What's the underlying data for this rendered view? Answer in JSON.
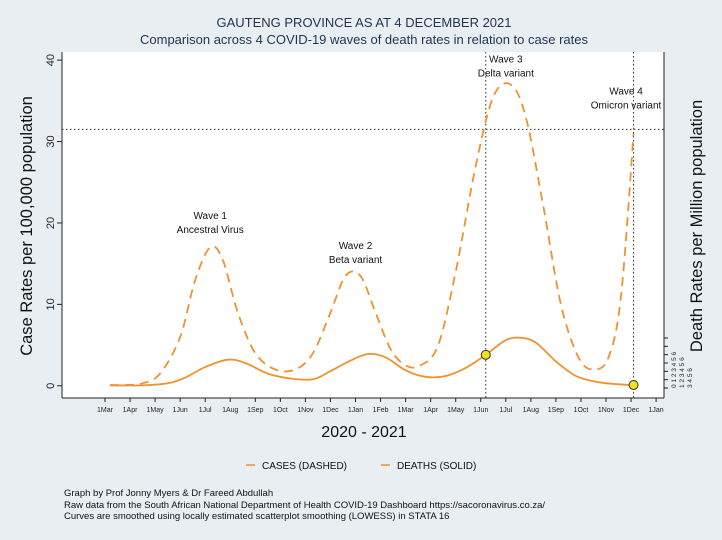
{
  "chart_data": {
    "type": "line",
    "title": "GAUTENG PROVINCE AS AT 4 DECEMBER 2021",
    "subtitle": "Comparison across 4 COVID-19 waves of death rates in relation to case rates",
    "xlabel": "2020 - 2021",
    "ylabel_left": "Case Rates per 100,000 population",
    "ylabel_right": "Death Rates per Million population",
    "x_ticks": [
      "1Mar",
      "1Apr",
      "1May",
      "1Jun",
      "1Jul",
      "1Aug",
      "1Sep",
      "1Oct",
      "1Nov",
      "1Dec",
      "1Jan",
      "1Feb",
      "1Mar",
      "1Apr",
      "1May",
      "1Jun",
      "1Jul",
      "1Aug",
      "1Sep",
      "1Oct",
      "1Nov",
      "1Dec",
      "1Jan"
    ],
    "y_left_ticks": [
      0,
      10,
      20,
      30,
      40
    ],
    "ylim_left": [
      -1.5,
      41
    ],
    "y_right_ticks": [
      0,
      1,
      2,
      3,
      4,
      5,
      6
    ],
    "right_tick_rows": [
      "0 1 2 3 4 5 6",
      "1 2 3 4 5 6",
      "3 4 5 6"
    ],
    "reference_line_y": 31.5,
    "reference_line_x_months": [
      15.2,
      21.1
    ],
    "series": [
      {
        "name": "CASES (DASHED)",
        "style": "dashed",
        "color": "#f0922f",
        "points": [
          [
            0.2,
            0.1
          ],
          [
            0.8,
            0.1
          ],
          [
            1.5,
            0.3
          ],
          [
            2.2,
            1.5
          ],
          [
            3.0,
            6
          ],
          [
            3.6,
            13
          ],
          [
            4.2,
            17
          ],
          [
            4.7,
            15.5
          ],
          [
            5.3,
            9
          ],
          [
            6.0,
            4
          ],
          [
            6.8,
            2
          ],
          [
            7.6,
            2
          ],
          [
            8.3,
            4
          ],
          [
            9.0,
            9
          ],
          [
            9.6,
            13.5
          ],
          [
            10.2,
            13.5
          ],
          [
            10.8,
            9
          ],
          [
            11.4,
            4.5
          ],
          [
            12.0,
            2.5
          ],
          [
            12.6,
            2.5
          ],
          [
            13.3,
            5
          ],
          [
            14.0,
            14
          ],
          [
            14.8,
            27
          ],
          [
            15.5,
            35.5
          ],
          [
            16.2,
            37
          ],
          [
            16.8,
            33
          ],
          [
            17.5,
            22
          ],
          [
            18.2,
            10
          ],
          [
            18.9,
            3.5
          ],
          [
            19.5,
            2
          ],
          [
            20.1,
            3.5
          ],
          [
            20.6,
            11
          ],
          [
            21.1,
            31
          ]
        ]
      },
      {
        "name": "DEATHS (SOLID)",
        "style": "solid",
        "color": "#f0922f",
        "points": [
          [
            0.2,
            0.05
          ],
          [
            1.5,
            0.05
          ],
          [
            2.5,
            0.3
          ],
          [
            3.2,
            1.0
          ],
          [
            4.0,
            2.3
          ],
          [
            4.9,
            3.2
          ],
          [
            5.6,
            2.8
          ],
          [
            6.5,
            1.5
          ],
          [
            7.4,
            0.9
          ],
          [
            8.3,
            0.8
          ],
          [
            9.0,
            1.8
          ],
          [
            9.8,
            3.1
          ],
          [
            10.5,
            3.9
          ],
          [
            11.2,
            3.5
          ],
          [
            12.0,
            1.9
          ],
          [
            12.8,
            1.1
          ],
          [
            13.6,
            1.2
          ],
          [
            14.4,
            2.2
          ],
          [
            15.2,
            3.8
          ],
          [
            16.0,
            5.6
          ],
          [
            16.6,
            5.9
          ],
          [
            17.2,
            5.3
          ],
          [
            18.0,
            3.0
          ],
          [
            18.8,
            1.2
          ],
          [
            19.6,
            0.5
          ],
          [
            20.4,
            0.2
          ],
          [
            21.1,
            0.1
          ]
        ]
      }
    ],
    "markers": [
      {
        "x": 15.2,
        "y": 3.8,
        "color": "#f2e21c"
      },
      {
        "x": 21.1,
        "y": 0.1,
        "color": "#f2e21c"
      }
    ],
    "annotations": [
      {
        "x": 4.2,
        "y": 20.5,
        "lines": [
          "Wave 1",
          "Ancestral Virus"
        ]
      },
      {
        "x": 10.0,
        "y": 16.8,
        "lines": [
          "Wave 2",
          "Beta  variant"
        ]
      },
      {
        "x": 16.0,
        "y": 39.7,
        "lines": [
          "Wave 3",
          "Delta  variant"
        ]
      },
      {
        "x": 20.8,
        "y": 35.8,
        "lines": [
          "Wave 4",
          "Omicron  variant"
        ]
      }
    ],
    "legend": [
      "CASES (DASHED)",
      "DEATHS (SOLID)"
    ],
    "legend_position": "bottom",
    "grid": false
  },
  "footer": {
    "line1": "Graph by Prof Jonny Myers & Dr Fareed Abdullah",
    "line2": "Raw data from the South African National Department of Health COVID-19 Dashboard  https://sacoronavirus.co.za/",
    "line3": "Curves are smoothed using locally estimated scatterplot smoothing (LOWESS) in STATA 16"
  }
}
